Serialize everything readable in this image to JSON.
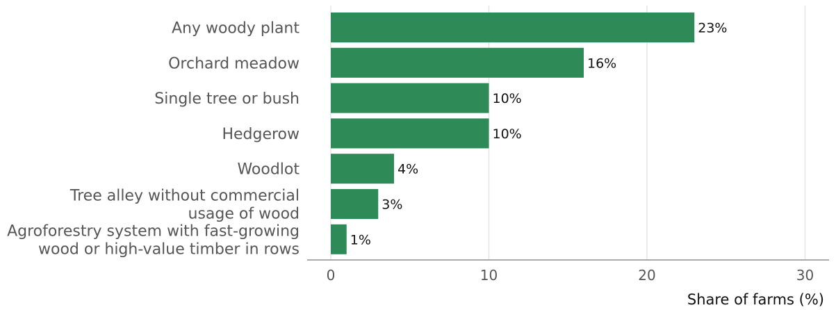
{
  "chart_data": {
    "type": "bar",
    "orientation": "horizontal",
    "categories": [
      [
        "Any woody plant"
      ],
      [
        "Orchard meadow"
      ],
      [
        "Single tree or bush"
      ],
      [
        "Hedgerow"
      ],
      [
        "Woodlot"
      ],
      [
        "Tree alley without commercial",
        "usage of wood"
      ],
      [
        "Agroforestry system with fast-growing",
        "wood or high-value timber in rows"
      ]
    ],
    "values": [
      23,
      16,
      10,
      10,
      4,
      3,
      1
    ],
    "value_labels": [
      "23%",
      "16%",
      "10%",
      "10%",
      "4%",
      "3%",
      "1%"
    ],
    "xlabel": "Share of farms (%)",
    "xlim": [
      0,
      30
    ],
    "xticks": [
      0,
      10,
      20,
      30
    ],
    "xtick_labels": [
      "0",
      "10",
      "20",
      "30"
    ],
    "grid": true,
    "bar_color": "#2e8b57"
  }
}
